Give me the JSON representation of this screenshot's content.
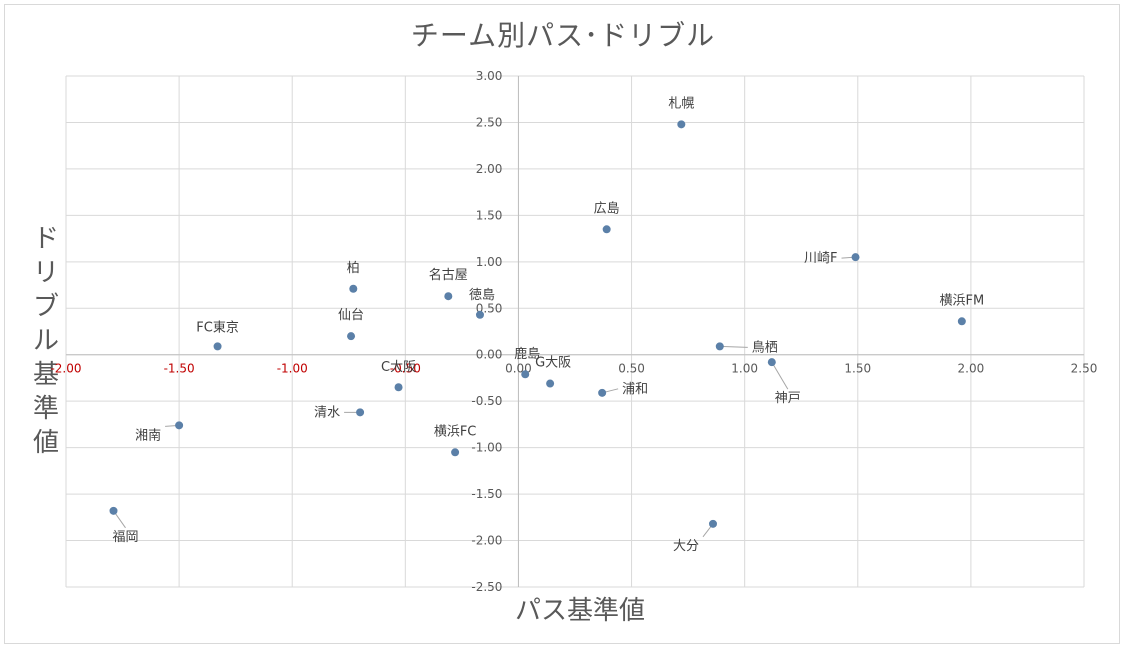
{
  "chart_data": {
    "type": "scatter",
    "title": "チーム別パス･ドリブル",
    "xlabel": "パス基準値",
    "ylabel": "ドリブル基準値",
    "xlim": [
      -2.0,
      2.5
    ],
    "ylim": [
      -2.5,
      3.0
    ],
    "x_ticks": [
      "-2.00",
      "-1.50",
      "-1.00",
      "-0.50",
      "0.00",
      "0.50",
      "1.00",
      "1.50",
      "2.00",
      "2.50"
    ],
    "y_ticks": [
      "3.00",
      "2.50",
      "2.00",
      "1.50",
      "1.00",
      "0.50",
      "0.00",
      "-0.50",
      "-1.00",
      "-1.50",
      "-2.00",
      "-2.50"
    ],
    "grid": true,
    "marker_color": "#5b80a8",
    "negative_tick_color": "#c00000",
    "points": [
      {
        "label": "札幌",
        "x": 0.72,
        "y": 2.48
      },
      {
        "label": "広島",
        "x": 0.39,
        "y": 1.35
      },
      {
        "label": "川崎F",
        "x": 1.49,
        "y": 1.05
      },
      {
        "label": "横浜FM",
        "x": 1.96,
        "y": 0.36
      },
      {
        "label": "鳥栖",
        "x": 0.89,
        "y": 0.09
      },
      {
        "label": "神戸",
        "x": 1.12,
        "y": -0.08
      },
      {
        "label": "浦和",
        "x": 0.37,
        "y": -0.41
      },
      {
        "label": "G大阪",
        "x": 0.14,
        "y": -0.31
      },
      {
        "label": "鹿島",
        "x": 0.03,
        "y": -0.21
      },
      {
        "label": "大分",
        "x": 0.86,
        "y": -1.82
      },
      {
        "label": "柏",
        "x": -0.73,
        "y": 0.71
      },
      {
        "label": "名古屋",
        "x": -0.31,
        "y": 0.63
      },
      {
        "label": "徳島",
        "x": -0.17,
        "y": 0.43
      },
      {
        "label": "仙台",
        "x": -0.74,
        "y": 0.2
      },
      {
        "label": "FC東京",
        "x": -1.33,
        "y": 0.09
      },
      {
        "label": "C大阪",
        "x": -0.53,
        "y": -0.35
      },
      {
        "label": "清水",
        "x": -0.7,
        "y": -0.62
      },
      {
        "label": "横浜FC",
        "x": -0.28,
        "y": -1.05
      },
      {
        "label": "湘南",
        "x": -1.5,
        "y": -0.76
      },
      {
        "label": "福岡",
        "x": -1.79,
        "y": -1.68
      }
    ]
  }
}
